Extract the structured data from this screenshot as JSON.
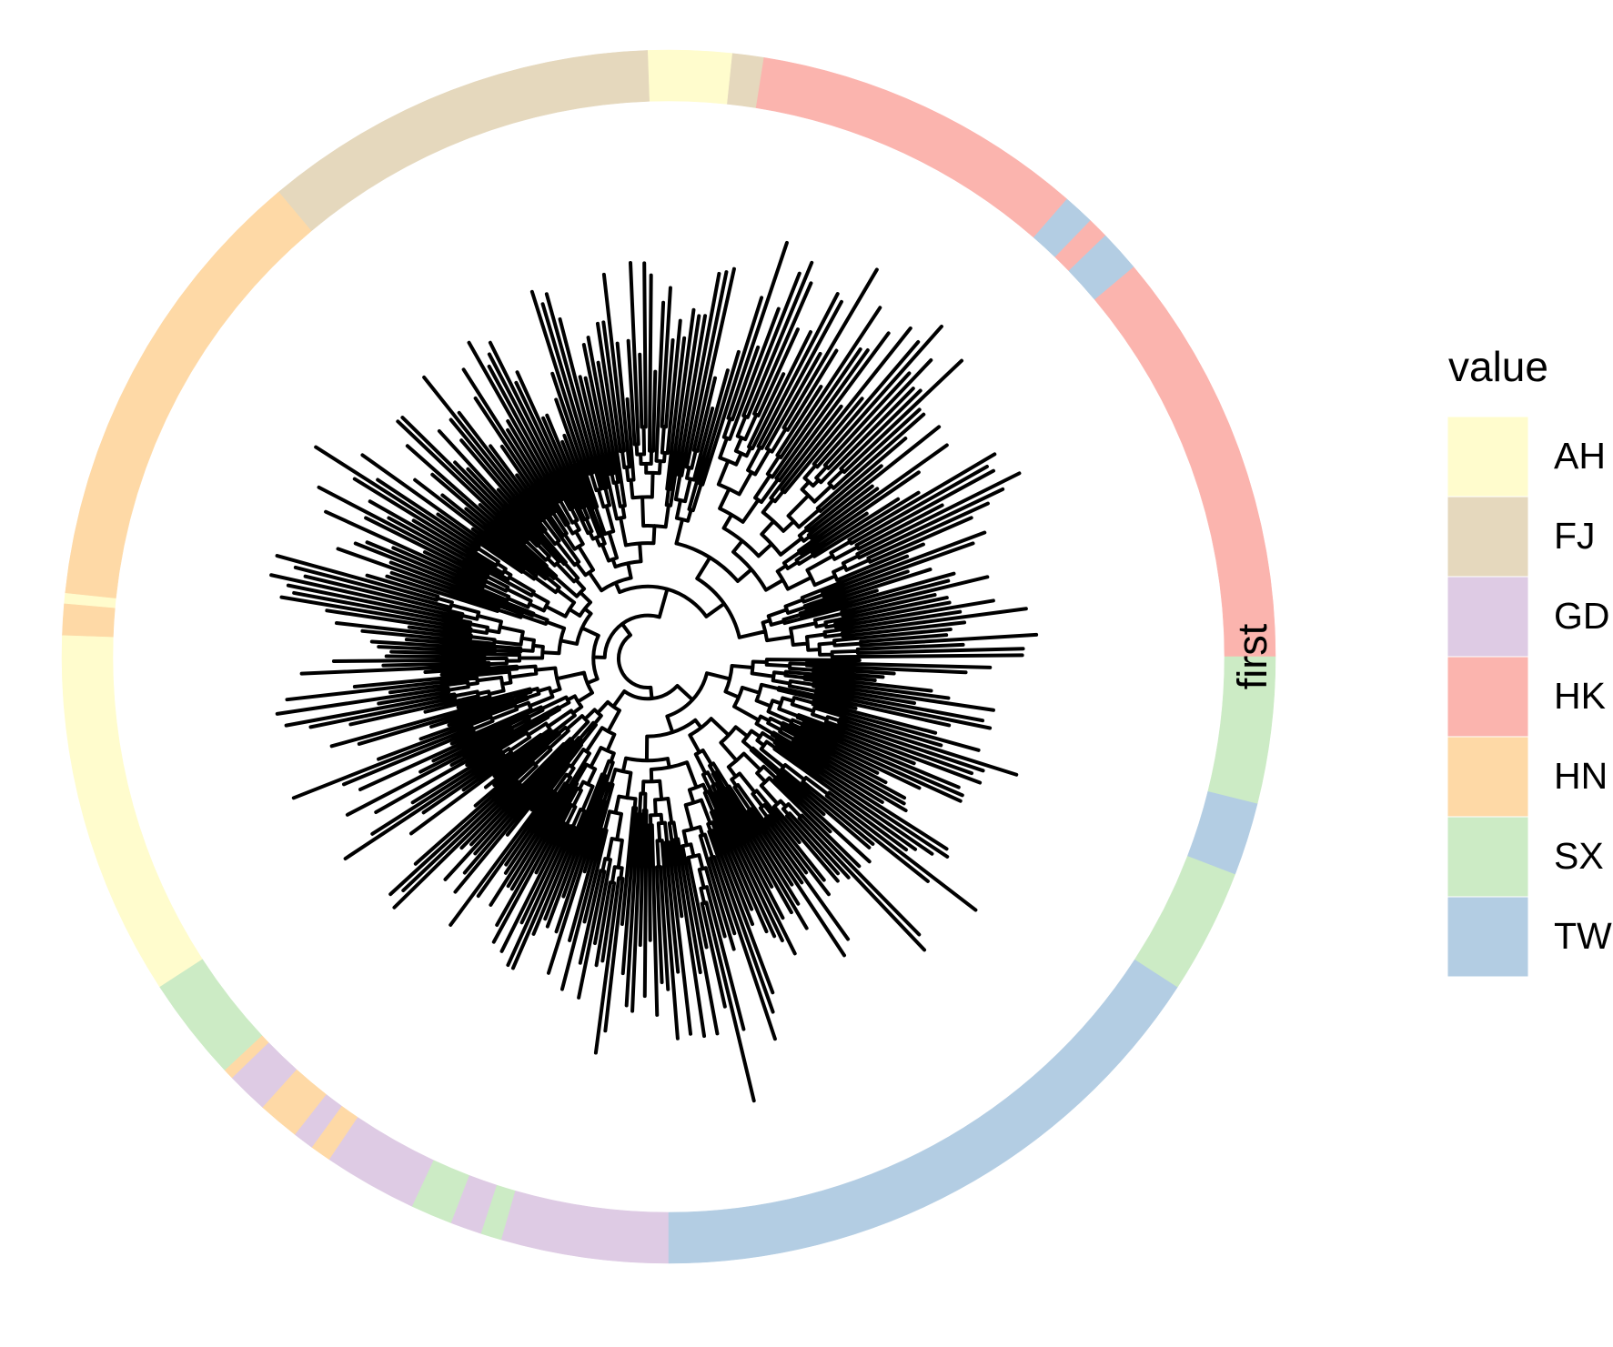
{
  "chart_data": {
    "type": "circular-tree",
    "heatmap_label": "first",
    "legend_title": "value",
    "legend": [
      {
        "name": "AH",
        "color": "#fffccd"
      },
      {
        "name": "FJ",
        "color": "#e5d8bd"
      },
      {
        "name": "GD",
        "color": "#decbe4"
      },
      {
        "name": "HK",
        "color": "#fbb4ae"
      },
      {
        "name": "HN",
        "color": "#fed9a6"
      },
      {
        "name": "SX",
        "color": "#ccebc5"
      },
      {
        "name": "TW",
        "color": "#b3cde3"
      }
    ],
    "ring": [
      {
        "value": "HK",
        "tips": 40
      },
      {
        "value": "TW",
        "tips": 4
      },
      {
        "value": "HK",
        "tips": 2
      },
      {
        "value": "TW",
        "tips": 3
      },
      {
        "value": "HK",
        "tips": 32
      },
      {
        "value": "FJ",
        "tips": 3
      },
      {
        "value": "AH",
        "tips": 8
      },
      {
        "value": "FJ",
        "tips": 38
      },
      {
        "value": "HN",
        "tips": 44
      },
      {
        "value": "AH",
        "tips": 1
      },
      {
        "value": "HN",
        "tips": 3
      },
      {
        "value": "AH",
        "tips": 35
      },
      {
        "value": "SX",
        "tips": 10
      },
      {
        "value": "HN",
        "tips": 1
      },
      {
        "value": "GD",
        "tips": 4
      },
      {
        "value": "HN",
        "tips": 4
      },
      {
        "value": "GD",
        "tips": 2
      },
      {
        "value": "HN",
        "tips": 2
      },
      {
        "value": "GD",
        "tips": 9
      },
      {
        "value": "SX",
        "tips": 4
      },
      {
        "value": "GD",
        "tips": 3
      },
      {
        "value": "SX",
        "tips": 2
      },
      {
        "value": "GD",
        "tips": 16
      },
      {
        "value": "TW",
        "tips": 57
      },
      {
        "value": "SX",
        "tips": 12
      },
      {
        "value": "TW",
        "tips": 7
      },
      {
        "value": "SX",
        "tips": 14
      }
    ]
  }
}
